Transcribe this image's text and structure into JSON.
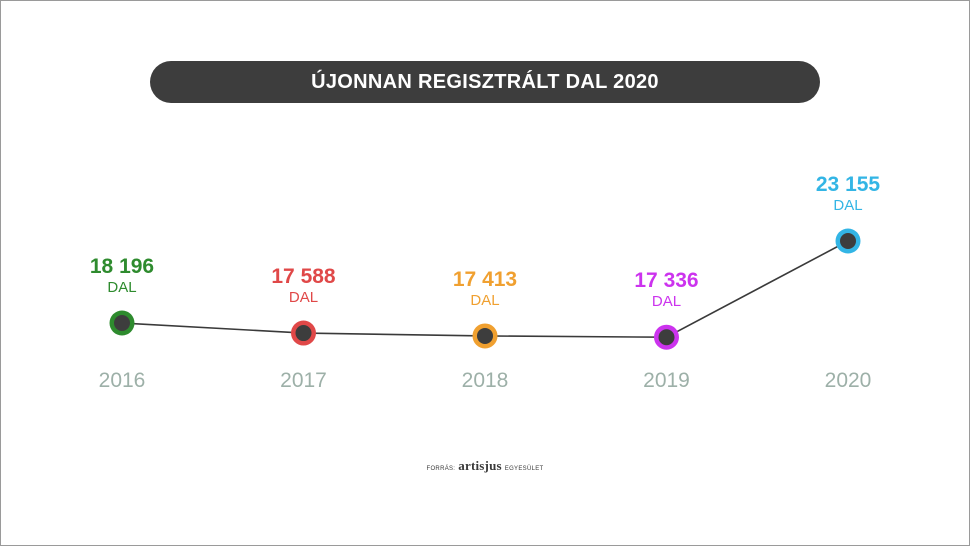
{
  "title": "ÚJONNAN REGISZTRÁLT DAL 2020",
  "source": {
    "prefix": "FORRÁS:",
    "brand": "artisjus",
    "suffix": "EGYESÜLET"
  },
  "colors": {
    "line": "#3a3a3a",
    "marker_center": "#3d3d3d",
    "year_label": "#9db0a8",
    "title_bg": "#3d3d3d"
  },
  "chart_data": {
    "type": "line",
    "title": "ÚJONNAN REGISZTRÁLT DAL 2020",
    "categories": [
      "2016",
      "2017",
      "2018",
      "2019",
      "2020"
    ],
    "values": [
      18196,
      17588,
      17413,
      17336,
      23155
    ],
    "value_labels": [
      "18 196",
      "17 588",
      "17 413",
      "17 336",
      "23 155"
    ],
    "unit": "DAL",
    "point_colors": [
      "#2e8b2e",
      "#e04848",
      "#f0a030",
      "#cc33ee",
      "#33b5e5"
    ],
    "xlabel": "",
    "ylabel": "",
    "grid": false,
    "legend": "none"
  }
}
